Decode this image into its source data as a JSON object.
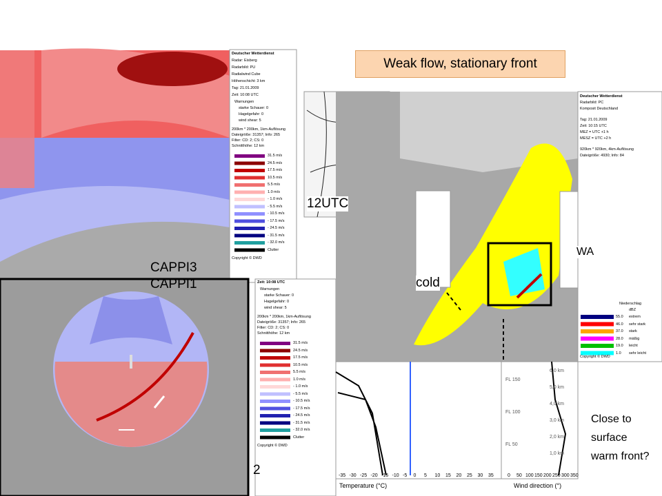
{
  "title": "Weak flow, stationary front",
  "labels": {
    "utc": "12UTC",
    "cappi3": "CAPPI3",
    "cappi1": "CAPPI1",
    "cold": "cold",
    "warm": "WA",
    "slide_number": "2",
    "question": "Close to surface warm front?"
  },
  "radial_legend_top": {
    "header": [
      "Deutscher Wetterdienst",
      "Radar: Eisberg",
      "Radarbild: PU",
      "Radialwind Cube",
      "Höhenschicht: 3 km",
      "Tag: 21.01.2009",
      "Zeit: 10:08 UTC"
    ],
    "warnings_title": "Warnungen",
    "warnings": [
      "starke Schauer: 0",
      "Hagelgefahr: 0",
      "wind shear: 5"
    ],
    "info": [
      "200km * 200km, 1km-Auflösung",
      "Dateigröße: 31357; Info: 265",
      "Filter: CD: 2; CS: 0",
      "Schnitthöhe: 12 km"
    ],
    "scale": [
      "31.5 m/s",
      "24.5 m/s",
      "17.5 m/s",
      "10.5 m/s",
      "5.5 m/s",
      "1.0 m/s",
      "- 1.0 m/s",
      "- 5.5 m/s",
      "- 10.5 m/s",
      "- 17.5 m/s",
      "- 24.5 m/s",
      "- 31.5 m/s",
      "- 32.0 m/s",
      "Clutter"
    ],
    "copyright": "Copyright © DWD"
  },
  "radial_legend_bottom": {
    "header": [
      "Zeit: 10:08 UTC"
    ],
    "warnings_title": "Warnungen",
    "warnings": [
      "starke Schauer: 0",
      "Hagelgefahr: 0",
      "wind shear: 5"
    ],
    "info": [
      "200km * 200km, 1km-Auflösung",
      "Dateigröße: 31357; Info: 265",
      "Filter: CD: 2; CS: 0",
      "Schnitthöhe: 12 km"
    ],
    "scale": [
      "31.5 m/s",
      "24.5 m/s",
      "17.5 m/s",
      "10.5 m/s",
      "5.5 m/s",
      "1.0 m/s",
      "- 1.0 m/s",
      "- 5.5 m/s",
      "- 10.5 m/s",
      "- 17.5 m/s",
      "- 24.5 m/s",
      "- 31.5 m/s",
      "- 32.0 m/s",
      "Clutter"
    ],
    "copyright": "Copyright © DWD"
  },
  "composite_legend": {
    "header": [
      "Deutscher Wetterdienst",
      "Radarbild: PC",
      "Komposit Deutschland",
      "Tag: 21.01.2009",
      "Zeit: 10:15 UTC",
      "MEZ = UTC +1 h",
      "MESZ = UTC +2 h",
      "920km * 920km, 4km-Auflösung",
      "Dateigröße: 4930; Info: 84"
    ],
    "precip_title": "Niederschlag",
    "unit": "dBZ",
    "rows": [
      {
        "value": "55.0",
        "label": "extrem"
      },
      {
        "value": "46.0",
        "label": "sehr stark"
      },
      {
        "value": "37.0",
        "label": "stark"
      },
      {
        "value": "28.0",
        "label": "mäßig"
      },
      {
        "value": "19.0",
        "label": "leicht"
      },
      {
        "value": "1.0",
        "label": "sehr leicht"
      }
    ],
    "copyright": "Copyright © DWD"
  },
  "sounding": {
    "x_label": "Temperature (°C)",
    "x_ticks": [
      "-35",
      "-30",
      "-25",
      "-20",
      "-15",
      "-10",
      "-5",
      "0",
      "5",
      "10",
      "15",
      "20",
      "25",
      "30",
      "35"
    ],
    "heights": [
      "6,0 km",
      "5,0 km",
      "4,0 km",
      "3,0 km",
      "2,0 km",
      "1,0 km"
    ],
    "flight_levels": [
      "FL 150",
      "FL 100",
      "FL 50"
    ],
    "wind_label": "Wind direction (°)",
    "wind_ticks": [
      "0",
      "50",
      "100",
      "150",
      "200",
      "250",
      "300",
      "350"
    ]
  }
}
